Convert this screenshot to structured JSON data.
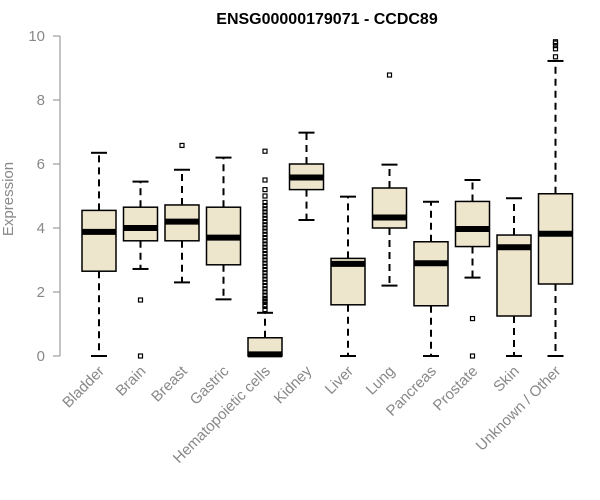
{
  "chart_data": {
    "type": "boxplot",
    "title": "ENSG00000179071 - CCDC89",
    "xlabel": "",
    "ylabel": "Expression",
    "ylim": [
      0,
      10
    ],
    "yticks": [
      0,
      2,
      4,
      6,
      8,
      10
    ],
    "grid": false,
    "colors": {
      "box_fill": "#ede6cc",
      "box_stroke": "#000000",
      "axis": "#888888"
    },
    "categories": [
      "Bladder",
      "Brain",
      "Breast",
      "Gastric",
      "Hematopoietic cells",
      "Kidney",
      "Liver",
      "Lung",
      "Pancreas",
      "Prostate",
      "Skin",
      "Unknown / Other"
    ],
    "boxes": [
      {
        "min": 0.0,
        "q1": 2.65,
        "median": 3.88,
        "q3": 4.55,
        "max": 6.35,
        "outliers": []
      },
      {
        "min": 2.72,
        "q1": 3.6,
        "median": 4.0,
        "q3": 4.65,
        "max": 5.45,
        "outliers": [
          1.75,
          0.0
        ]
      },
      {
        "min": 2.3,
        "q1": 3.6,
        "median": 4.2,
        "q3": 4.72,
        "max": 5.82,
        "outliers": [
          6.58
        ]
      },
      {
        "min": 1.77,
        "q1": 2.85,
        "median": 3.7,
        "q3": 4.65,
        "max": 6.2,
        "outliers": []
      },
      {
        "min": 0.0,
        "q1": 0.0,
        "median": 0.05,
        "q3": 0.57,
        "max": 1.35,
        "outliers": [
          1.45,
          1.55,
          1.6,
          1.7,
          1.75,
          1.8,
          1.9,
          2.0,
          2.1,
          2.2,
          2.3,
          2.4,
          2.5,
          2.6,
          2.7,
          2.8,
          2.9,
          3.0,
          3.1,
          3.2,
          3.3,
          3.4,
          3.5,
          3.6,
          3.7,
          3.8,
          3.9,
          4.0,
          4.1,
          4.2,
          4.3,
          4.4,
          4.5,
          4.6,
          4.7,
          4.8,
          5.0,
          5.2,
          5.5,
          6.4
        ]
      },
      {
        "min": 4.25,
        "q1": 5.2,
        "median": 5.58,
        "q3": 6.0,
        "max": 6.98,
        "outliers": []
      },
      {
        "min": 0.0,
        "q1": 1.6,
        "median": 2.88,
        "q3": 3.05,
        "max": 4.98,
        "outliers": []
      },
      {
        "min": 2.2,
        "q1": 4.0,
        "median": 4.33,
        "q3": 5.25,
        "max": 5.98,
        "outliers": [
          8.78
        ]
      },
      {
        "min": 0.0,
        "q1": 1.57,
        "median": 2.9,
        "q3": 3.57,
        "max": 4.82,
        "outliers": []
      },
      {
        "min": 2.45,
        "q1": 3.42,
        "median": 3.97,
        "q3": 4.83,
        "max": 5.5,
        "outliers": [
          1.17,
          0.0
        ]
      },
      {
        "min": 0.0,
        "q1": 1.25,
        "median": 3.4,
        "q3": 3.78,
        "max": 4.93,
        "outliers": []
      },
      {
        "min": 0.0,
        "q1": 2.25,
        "median": 3.82,
        "q3": 5.07,
        "max": 9.22,
        "outliers": [
          9.35,
          9.6,
          9.7,
          9.78,
          9.82
        ]
      }
    ]
  }
}
